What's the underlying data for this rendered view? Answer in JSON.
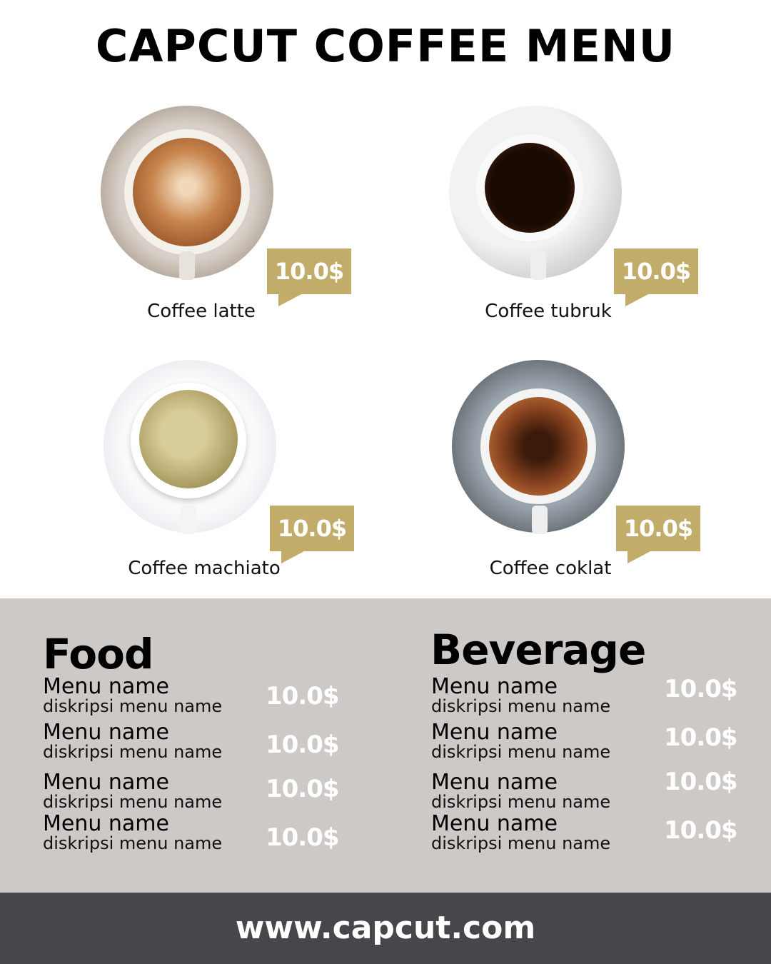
{
  "title": "CAPCUT COFFEE MENU",
  "colors": {
    "gold": "#c2ac6a",
    "band": "#cdc9c6",
    "footer": "#47464b"
  },
  "coffees": [
    {
      "name": "Coffee latte",
      "price": "10.0$",
      "image": "latte-cup-top-view"
    },
    {
      "name": "Coffee tubruk",
      "price": "10.0$",
      "image": "black-coffee-cup-top-view"
    },
    {
      "name": "Coffee machiato",
      "price": "10.0$",
      "image": "machiato-cup-top-view"
    },
    {
      "name": "Coffee coklat",
      "price": "10.0$",
      "image": "chocolate-coffee-cup-top-view"
    }
  ],
  "food": {
    "title": "Food",
    "items": [
      {
        "name": "Menu name",
        "desc": "diskripsi menu name",
        "price": "10.0$"
      },
      {
        "name": "Menu name",
        "desc": "diskripsi menu name",
        "price": "10.0$"
      },
      {
        "name": "Menu name",
        "desc": "diskripsi menu name",
        "price": "10.0$"
      },
      {
        "name": "Menu name",
        "desc": "diskripsi menu name",
        "price": "10.0$"
      }
    ]
  },
  "beverage": {
    "title": "Beverage",
    "items": [
      {
        "name": "Menu name",
        "desc": "diskripsi menu name",
        "price": "10.0$"
      },
      {
        "name": "Menu name",
        "desc": "diskripsi menu name",
        "price": "10.0$"
      },
      {
        "name": "Menu name",
        "desc": "diskripsi menu name",
        "price": "10.0$"
      },
      {
        "name": "Menu name",
        "desc": "diskripsi menu name",
        "price": "10.0$"
      }
    ]
  },
  "footer": "www.capcut.com"
}
